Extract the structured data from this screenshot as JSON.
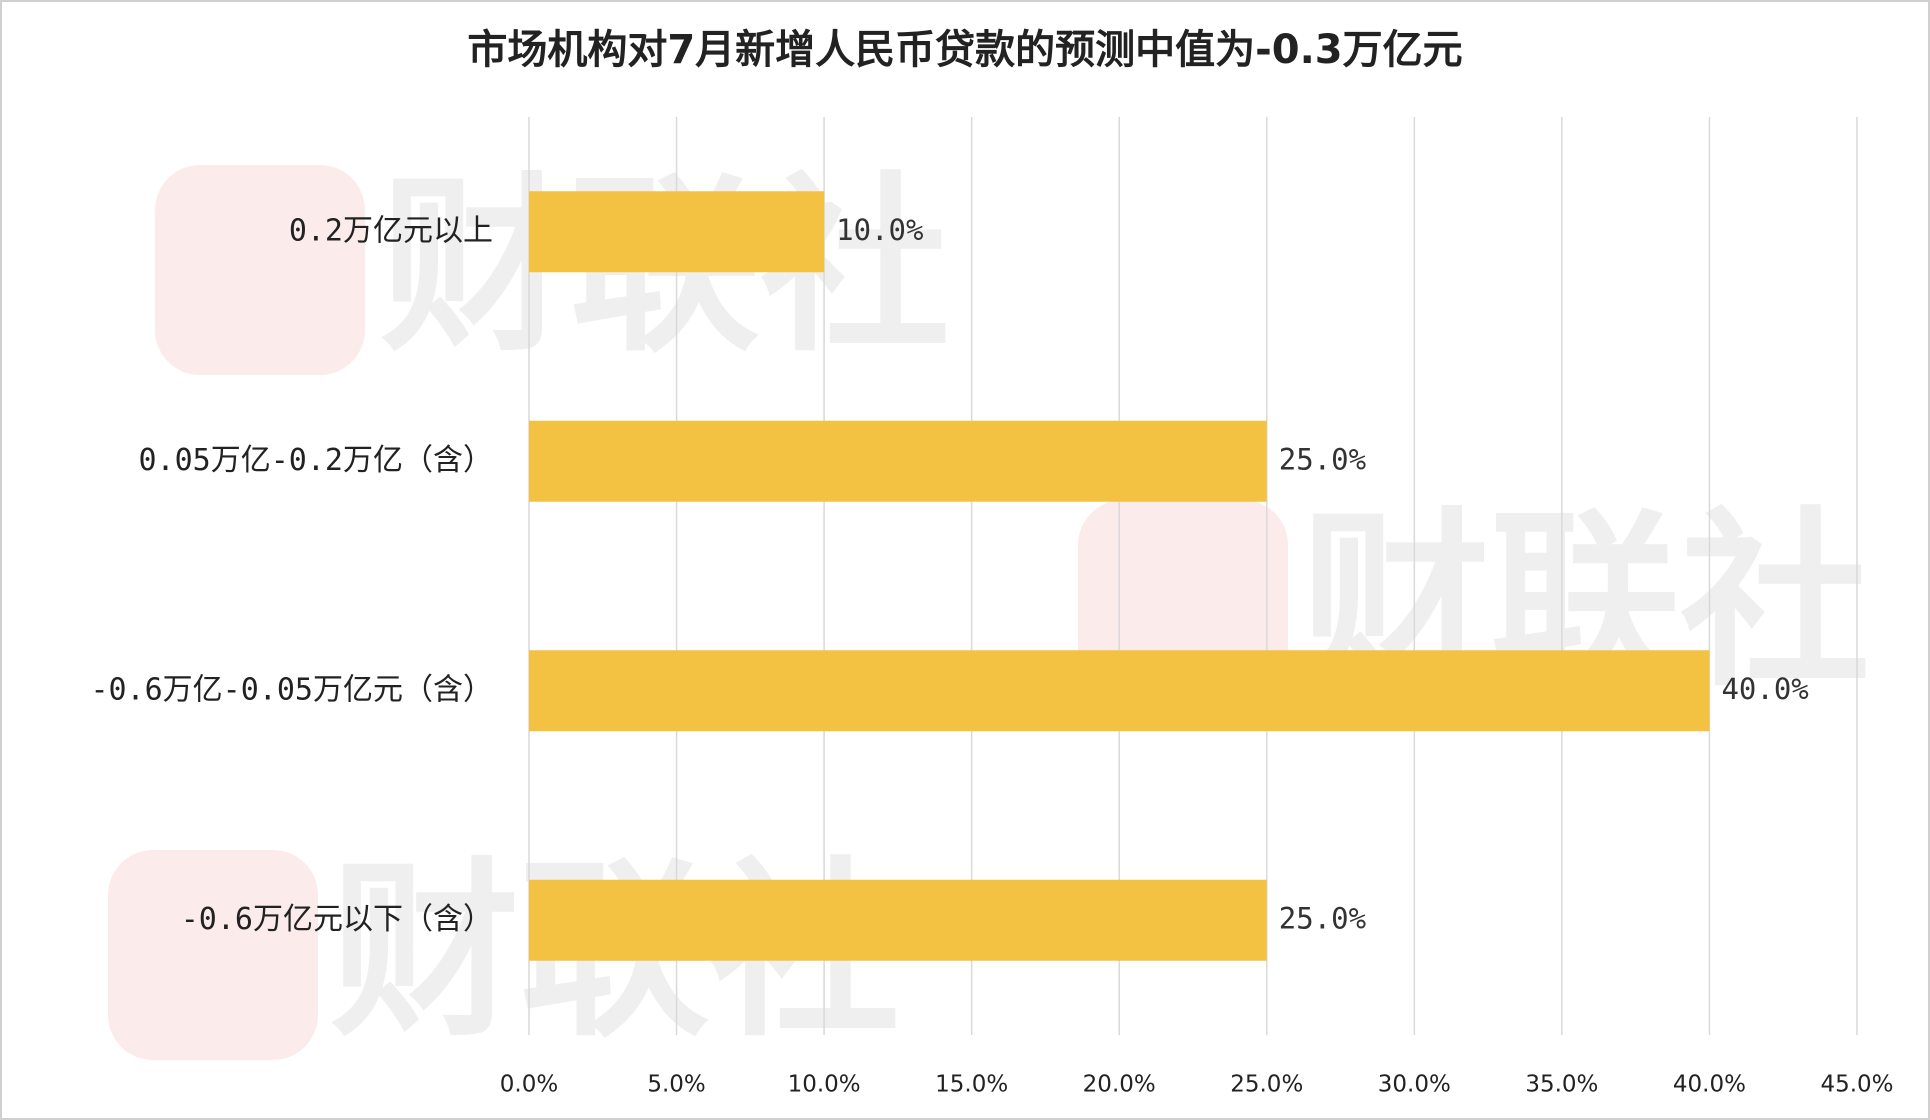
{
  "chart_data": {
    "type": "barh",
    "title": "市场机构对7月新增人民币贷款的预测中值为-0.3万亿元",
    "watermark": "财联社",
    "categories": [
      "0.2万亿元以上",
      "0.05万亿-0.2万亿（含）",
      "-0.6万亿-0.05万亿元（含）",
      "-0.6万亿元以下（含）"
    ],
    "values": [
      10,
      25,
      40,
      25
    ],
    "value_labels": [
      "10.0%",
      "25.0%",
      "40.0%",
      "25.0%"
    ],
    "color": "#f4c242",
    "xlim": [
      0,
      45
    ],
    "xticks": [
      {
        "value": 0,
        "label": "0.0%"
      },
      {
        "value": 5,
        "label": "5.0%"
      },
      {
        "value": 10,
        "label": "10.0%"
      },
      {
        "value": 15,
        "label": "15.0%"
      },
      {
        "value": 20,
        "label": "20.0%"
      },
      {
        "value": 25,
        "label": "25.0%"
      },
      {
        "value": 30,
        "label": "30.0%"
      },
      {
        "value": 35,
        "label": "35.0%"
      },
      {
        "value": 40,
        "label": "40.0%"
      },
      {
        "value": 45,
        "label": "45.0%"
      }
    ],
    "grid": true
  }
}
